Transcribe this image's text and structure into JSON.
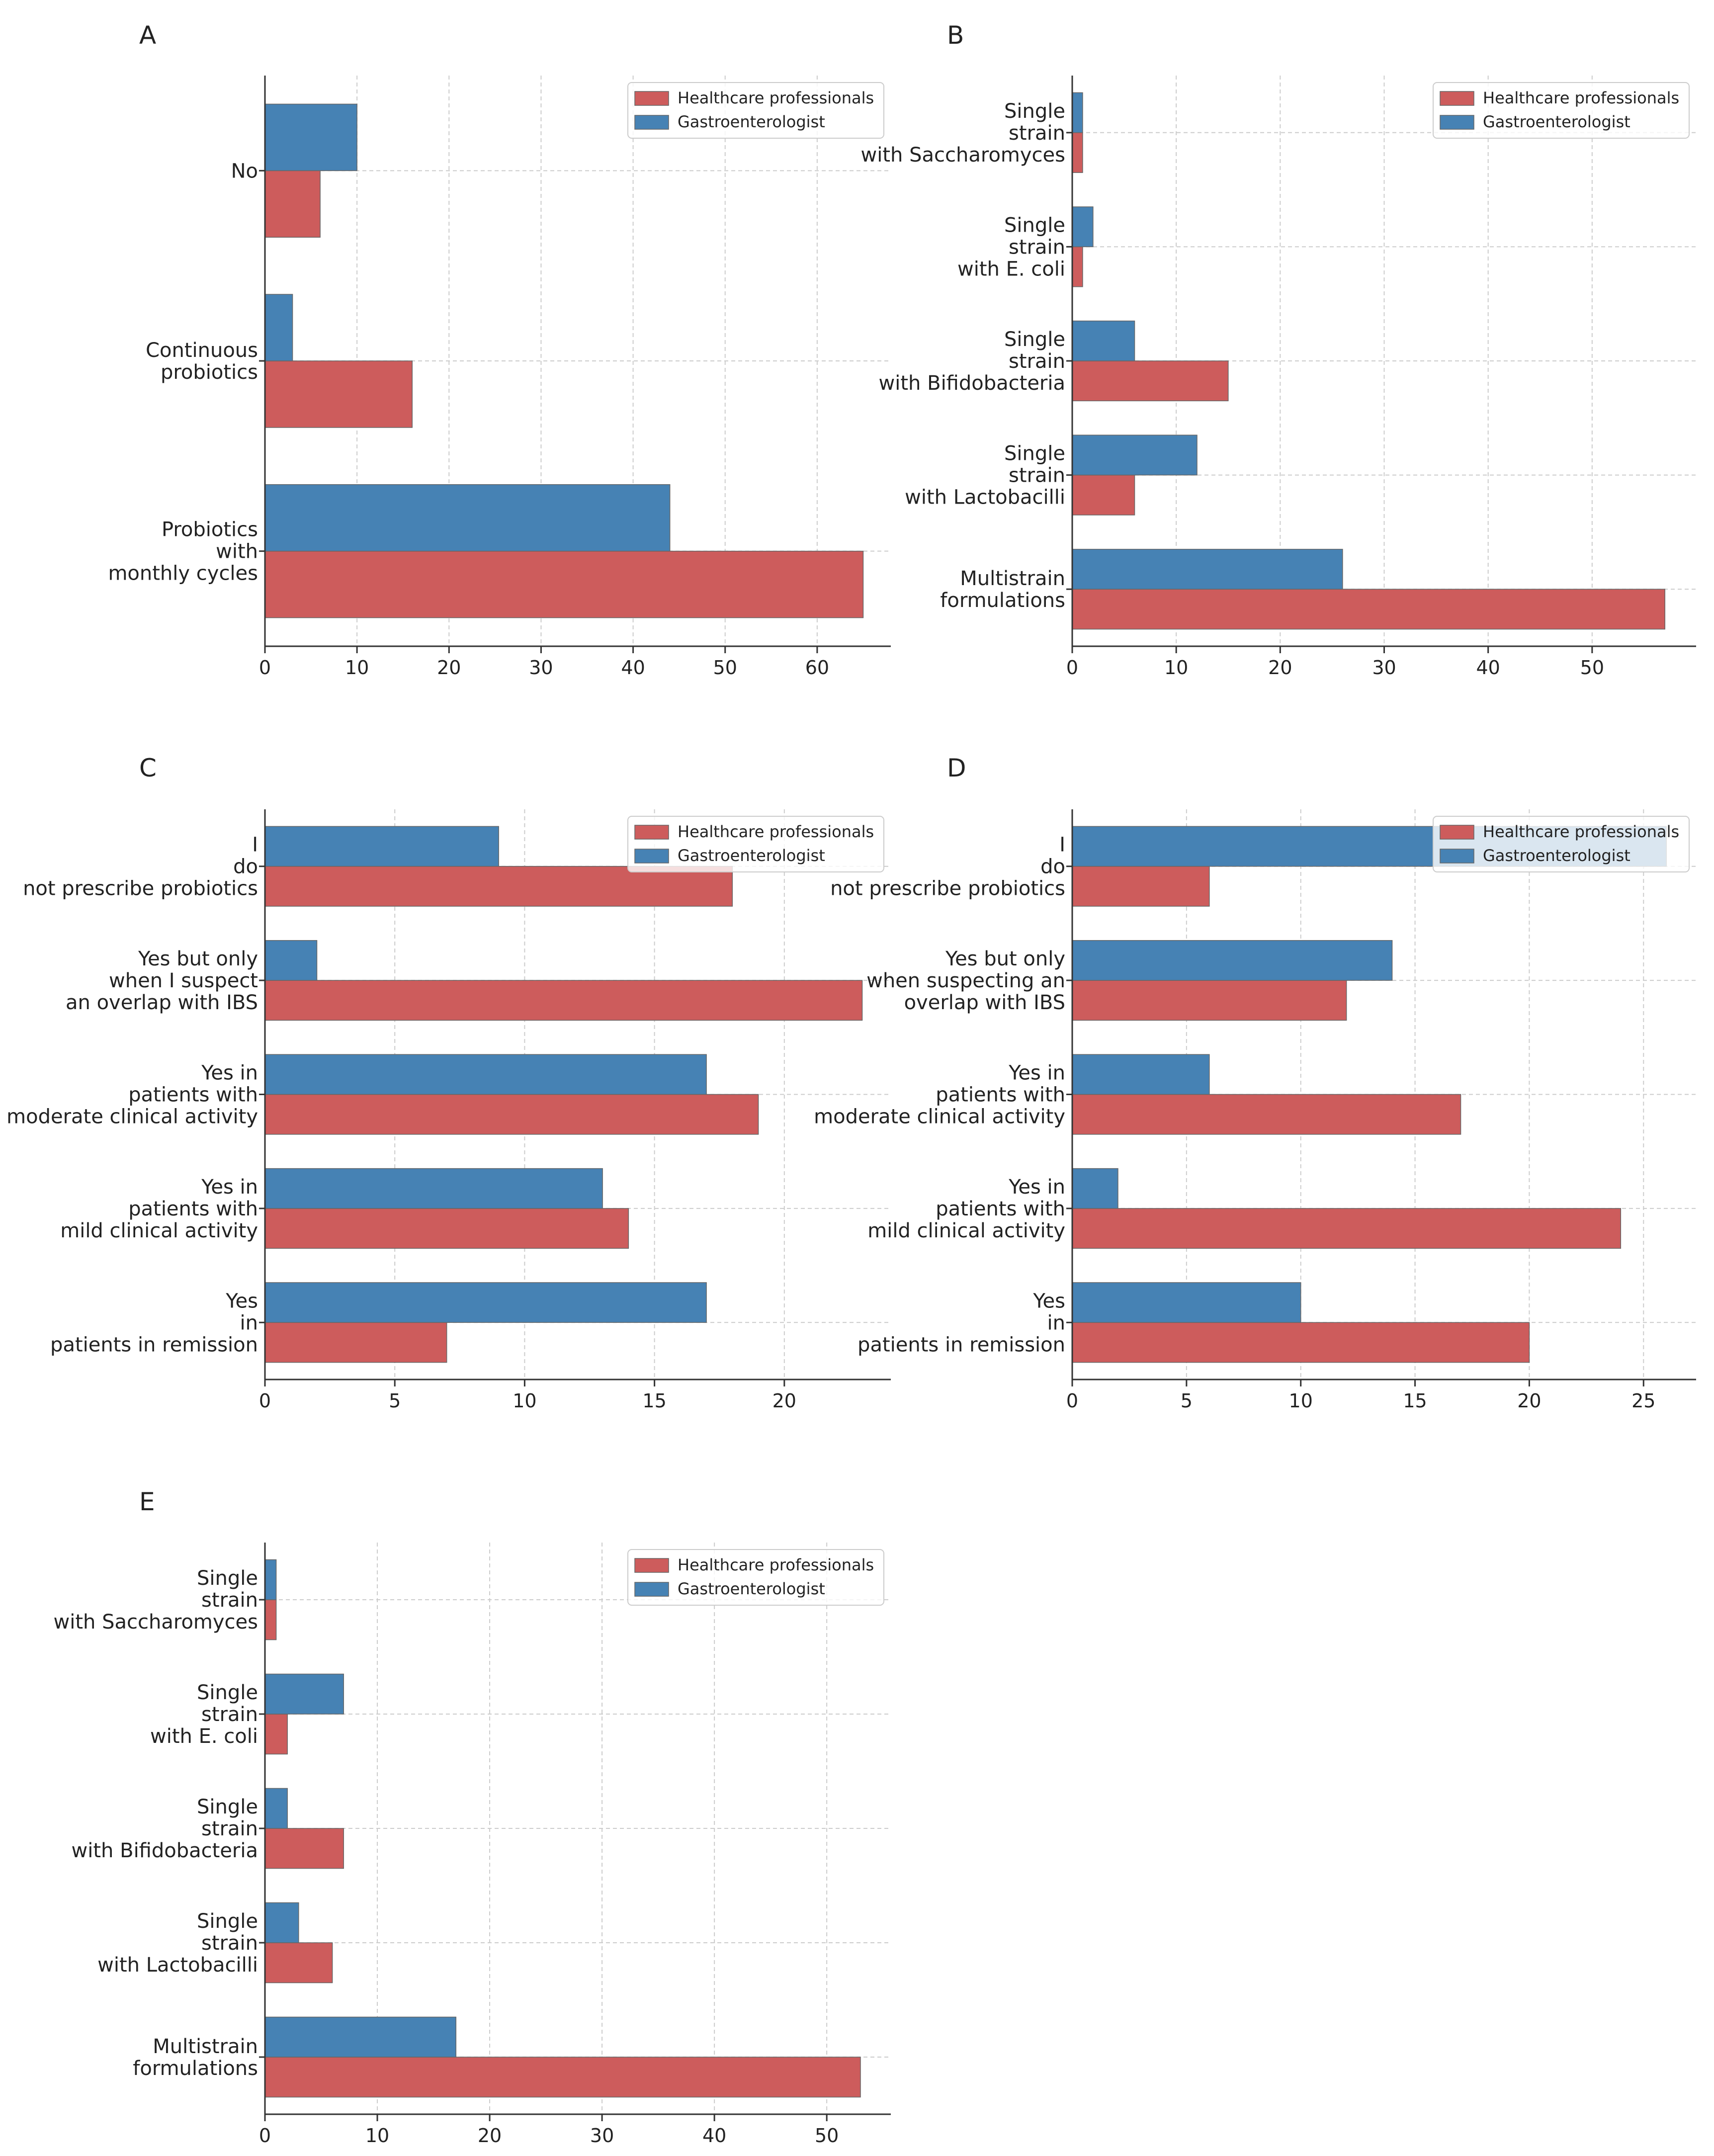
{
  "figure": {
    "colors": {
      "healthcare": "#CD5C5C",
      "gastro": "#4682B4",
      "grid": "#cccccc",
      "axis": "#333333",
      "legend_border": "#cccccc"
    }
  },
  "chart_data": [
    {
      "panel": "A",
      "type": "bar",
      "orientation": "horizontal",
      "categories": [
        [
          "No"
        ],
        [
          "Continuous",
          "probiotics"
        ],
        [
          "Probiotics",
          "with",
          "monthly cycles"
        ]
      ],
      "series": [
        {
          "name": "Healthcare professionals",
          "values": [
            6,
            16,
            65
          ]
        },
        {
          "name": "Gastroenterologist",
          "values": [
            10,
            3,
            44
          ]
        }
      ],
      "xlim": [
        0,
        68
      ],
      "xticks": [
        0,
        10,
        20,
        30,
        40,
        50,
        60
      ],
      "grid": true,
      "legend": "top-right"
    },
    {
      "panel": "B",
      "type": "bar",
      "orientation": "horizontal",
      "categories": [
        [
          "Single",
          "strain",
          "with Saccharomyces"
        ],
        [
          "Single",
          "strain",
          "with E. coli"
        ],
        [
          "Single",
          "strain",
          "with Bifidobacteria"
        ],
        [
          "Single",
          "strain",
          "with Lactobacilli"
        ],
        [
          "Multistrain",
          "formulations"
        ]
      ],
      "series": [
        {
          "name": "Healthcare professionals",
          "values": [
            1,
            1,
            15,
            6,
            57
          ]
        },
        {
          "name": "Gastroenterologist",
          "values": [
            1,
            2,
            6,
            12,
            26
          ]
        }
      ],
      "xlim": [
        0,
        60
      ],
      "xticks": [
        0,
        10,
        20,
        30,
        40,
        50
      ],
      "grid": true,
      "legend": "top-right"
    },
    {
      "panel": "C",
      "type": "bar",
      "orientation": "horizontal",
      "categories": [
        [
          "I",
          "do",
          "not prescribe probiotics"
        ],
        [
          "Yes but only",
          "when I suspect",
          "an overlap with IBS"
        ],
        [
          "Yes in",
          "patients with",
          "moderate clinical activity"
        ],
        [
          "Yes in",
          "patients with",
          "mild clinical activity"
        ],
        [
          "Yes",
          "in",
          "patients in remission"
        ]
      ],
      "series": [
        {
          "name": "Healthcare professionals",
          "values": [
            18,
            23,
            19,
            14,
            7
          ]
        },
        {
          "name": "Gastroenterologist",
          "values": [
            9,
            2,
            17,
            13,
            17
          ]
        }
      ],
      "xlim": [
        0,
        24.1
      ],
      "xticks": [
        0,
        5,
        10,
        15,
        20
      ],
      "grid": true,
      "legend": "top-right"
    },
    {
      "panel": "D",
      "type": "bar",
      "orientation": "horizontal",
      "categories": [
        [
          "I",
          "do",
          "not prescribe probiotics"
        ],
        [
          "Yes but only",
          "when suspecting an",
          "overlap with IBS"
        ],
        [
          "Yes in",
          "patients with",
          "moderate clinical activity"
        ],
        [
          "Yes in",
          "patients with",
          "mild clinical activity"
        ],
        [
          "Yes",
          "in",
          "patients in remission"
        ]
      ],
      "series": [
        {
          "name": "Healthcare professionals",
          "values": [
            6,
            12,
            17,
            24,
            20
          ]
        },
        {
          "name": "Gastroenterologist",
          "values": [
            26,
            14,
            6,
            2,
            10
          ]
        }
      ],
      "xlim": [
        0,
        27.3
      ],
      "xticks": [
        0,
        5,
        10,
        15,
        20,
        25
      ],
      "grid": true,
      "legend": "top-right"
    },
    {
      "panel": "E",
      "type": "bar",
      "orientation": "horizontal",
      "categories": [
        [
          "Single",
          "strain",
          "with Saccharomyces"
        ],
        [
          "Single",
          "strain",
          "with E. coli"
        ],
        [
          "Single",
          "strain",
          "with Bifidobacteria"
        ],
        [
          "Single",
          "strain",
          "with Lactobacilli"
        ],
        [
          "Multistrain",
          "formulations"
        ]
      ],
      "series": [
        {
          "name": "Healthcare professionals",
          "values": [
            1,
            2,
            7,
            6,
            53
          ]
        },
        {
          "name": "Gastroenterologist",
          "values": [
            1,
            7,
            2,
            3,
            17
          ]
        }
      ],
      "xlim": [
        0,
        55.7
      ],
      "xticks": [
        0,
        10,
        20,
        30,
        40,
        50
      ],
      "grid": true,
      "legend": "top-right"
    }
  ]
}
